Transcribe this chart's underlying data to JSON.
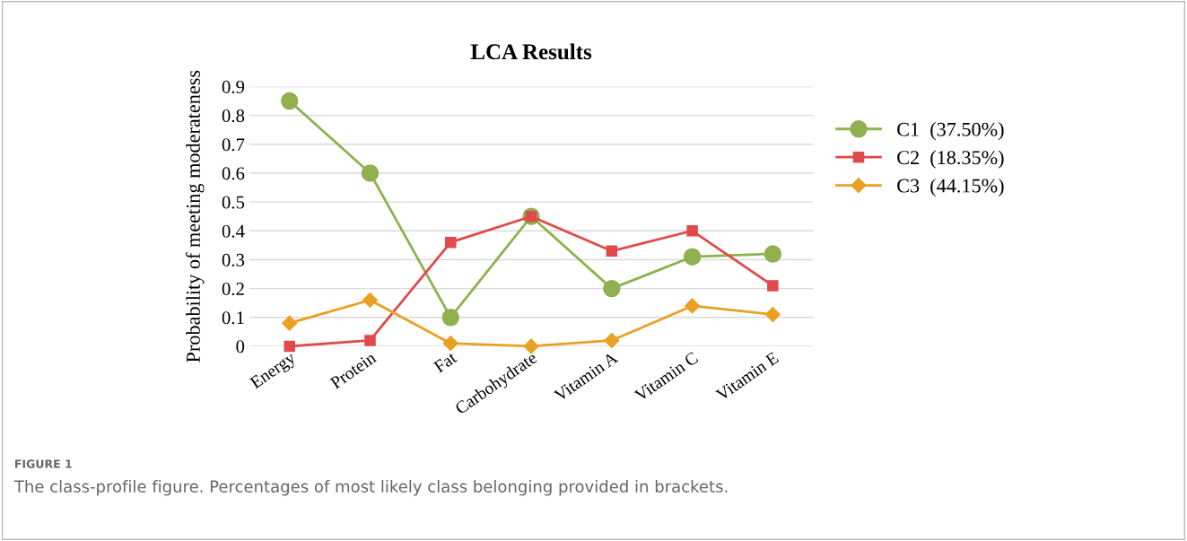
{
  "chart_data": {
    "type": "line",
    "title": "LCA Results",
    "ylabel": "Probability of meeting moderateness",
    "categories": [
      "Energy",
      "Protein",
      "Fat",
      "Carbohydrate",
      "Vitamin A",
      "Vitamin C",
      "Vitamin E"
    ],
    "series": [
      {
        "name": "C1  (37.50%)",
        "color": "#8fb14f",
        "marker": "circle",
        "values": [
          0.85,
          0.6,
          0.1,
          0.45,
          0.2,
          0.31,
          0.32
        ]
      },
      {
        "name": "C2  (18.35%)",
        "color": "#e04a4a",
        "marker": "square",
        "values": [
          0.0,
          0.02,
          0.36,
          0.45,
          0.33,
          0.4,
          0.21
        ]
      },
      {
        "name": "C3  (44.15%)",
        "color": "#e9a023",
        "marker": "diamond",
        "values": [
          0.08,
          0.16,
          0.01,
          0.0,
          0.02,
          0.14,
          0.11
        ]
      }
    ],
    "ylim": [
      0,
      0.9
    ],
    "yticks": [
      0,
      0.1,
      0.2,
      0.3,
      0.4,
      0.5,
      0.6,
      0.7,
      0.8,
      0.9
    ],
    "grid": "y",
    "legend": "right",
    "annotations": [
      "FIGURE 1",
      "The class-profile figure. Percentages of most likely class belonging provided in brackets."
    ]
  }
}
